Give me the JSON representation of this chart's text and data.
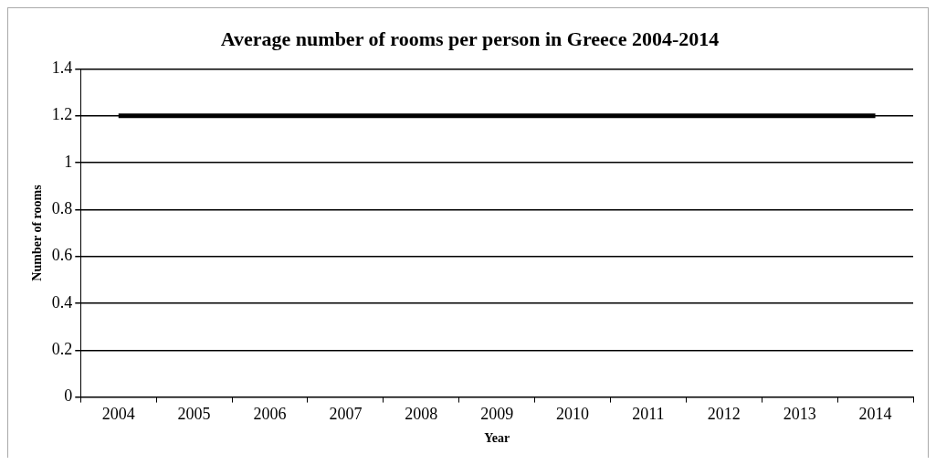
{
  "chart_data": {
    "type": "line",
    "title": "Average number of rooms per person in Greece 2004-2014",
    "xlabel": "Year",
    "ylabel": "Number of rooms",
    "categories": [
      "2004",
      "2005",
      "2006",
      "2007",
      "2008",
      "2009",
      "2010",
      "2011",
      "2012",
      "2013",
      "2014"
    ],
    "series": [
      {
        "color": "#000000",
        "values": [
          1.2,
          1.2,
          1.2,
          1.2,
          1.2,
          1.2,
          1.2,
          1.2,
          1.2,
          1.2,
          1.2
        ]
      }
    ],
    "ylim": [
      0,
      1.4
    ],
    "yticks": [
      0,
      0.2,
      0.4,
      0.6,
      0.8,
      1,
      1.2,
      1.4
    ],
    "grid": "y",
    "legend": false,
    "marker": "none",
    "line_style": "solid"
  }
}
